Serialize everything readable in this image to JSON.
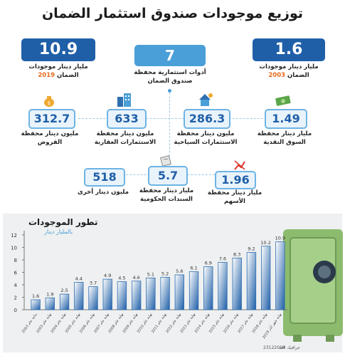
{
  "title": "توزيع موجودات صندوق استثمار الضمان",
  "stats": {
    "holdings_2019": {
      "value": "10.9",
      "label_main": "مليار دينار موجودات",
      "label_prefix": "الضمان ",
      "label_year": "2019"
    },
    "instruments": {
      "value": "7",
      "label": "أدوات استثمارية محفظة صندوق الضمان"
    },
    "holdings_2003": {
      "value": "1.6",
      "label_main": "مليار دينار موجودات",
      "label_prefix": "الضمان ",
      "label_year": "2003"
    },
    "loans": {
      "value": "312.7",
      "label": "مليون دينار محفظة القروض",
      "icon": "money-bag-icon"
    },
    "real_estate": {
      "value": "633",
      "label": "مليون دينار محفظة الاستثمارات العقارية",
      "icon": "buildings-icon"
    },
    "tourism": {
      "value": "286.3",
      "label": "مليون دينار محفظة الاستثمارات السياحية",
      "icon": "resort-icon"
    },
    "money_market": {
      "value": "1.49",
      "label": "مليار دينار محفظة السوق النقدية",
      "icon": "cash-icon"
    },
    "other": {
      "value": "518",
      "label": "مليون دينار أخرى"
    },
    "bonds": {
      "value": "5.7",
      "label": "مليار دينار محفظة السندات الحكومية",
      "icon": "bond-document-icon"
    },
    "stocks": {
      "value": "1.96",
      "label": "مليار دينار محفظة الأسهم",
      "icon": "stock-chart-icon"
    }
  },
  "chart_data": {
    "type": "bar",
    "title": "تطور الموجودات",
    "subtitle": "بالمليار دينار",
    "categories": [
      "بداية عام 2003",
      "نهاية عام 2003",
      "نهاية عام 2004",
      "نهاية عام 2005",
      "نهاية عام 2006",
      "نهاية عام 2007",
      "نهاية عام 2008",
      "نهاية عام 2009",
      "نهاية عام 2010",
      "نهاية عام 2011",
      "نهاية عام 2012",
      "نهاية عام 2013",
      "نهاية عام 2014",
      "نهاية عام 2015",
      "نهاية عام 2016",
      "نهاية عام 2017",
      "نهاية عام 2018",
      "نهاية شهر أيار 2019"
    ],
    "values": [
      1.6,
      1.9,
      2.5,
      4.4,
      3.7,
      4.9,
      4.5,
      4.6,
      5.1,
      5.2,
      5.6,
      6.1,
      6.9,
      7.6,
      8.3,
      9.2,
      10.2,
      10.9
    ],
    "yticks": [
      0,
      2,
      4,
      6,
      8,
      10,
      12
    ],
    "ylim": [
      0,
      12
    ],
    "grid": false,
    "colors": {
      "bar_fill": "#ffffff",
      "bar_stroke": "#2f6fb0",
      "bar_gradient_end": "#1f5fa8"
    }
  },
  "footer": {
    "credit": "جرافيك الغد",
    "date": "23122019"
  },
  "colors": {
    "dark_blue": "#1f5fa8",
    "light_blue": "#4a9fd8",
    "orange": "#e46b1c",
    "safe_green": "#7fb069"
  }
}
